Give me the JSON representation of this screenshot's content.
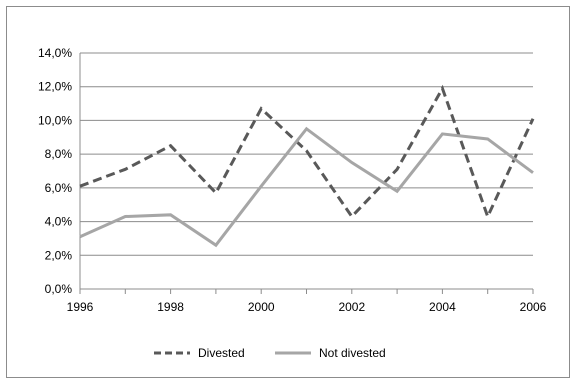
{
  "chart_data": {
    "type": "line",
    "x": [
      1996,
      1997,
      1998,
      1999,
      2000,
      2001,
      2002,
      2003,
      2004,
      2005,
      2006
    ],
    "xticks": [
      "1996",
      "1998",
      "2000",
      "2002",
      "2004",
      "2006"
    ],
    "yticks": [
      "0,0%",
      "2,0%",
      "4,0%",
      "6,0%",
      "8,0%",
      "10,0%",
      "12,0%",
      "14,0%"
    ],
    "ylim": [
      0,
      14
    ],
    "xlim": [
      1996,
      2006
    ],
    "grid": "horizontal",
    "legend_position": "bottom",
    "series": [
      {
        "name": "Divested",
        "values": [
          6.1,
          7.1,
          8.5,
          5.7,
          10.7,
          8.2,
          4.3,
          7.1,
          11.9,
          4.3,
          10.1
        ],
        "color": "#595959",
        "style": "dashed"
      },
      {
        "name": "Not divested",
        "values": [
          3.1,
          4.3,
          4.4,
          2.6,
          6.1,
          9.5,
          7.5,
          5.8,
          9.2,
          8.9,
          6.9
        ],
        "color": "#a6a6a6",
        "style": "solid"
      }
    ]
  }
}
